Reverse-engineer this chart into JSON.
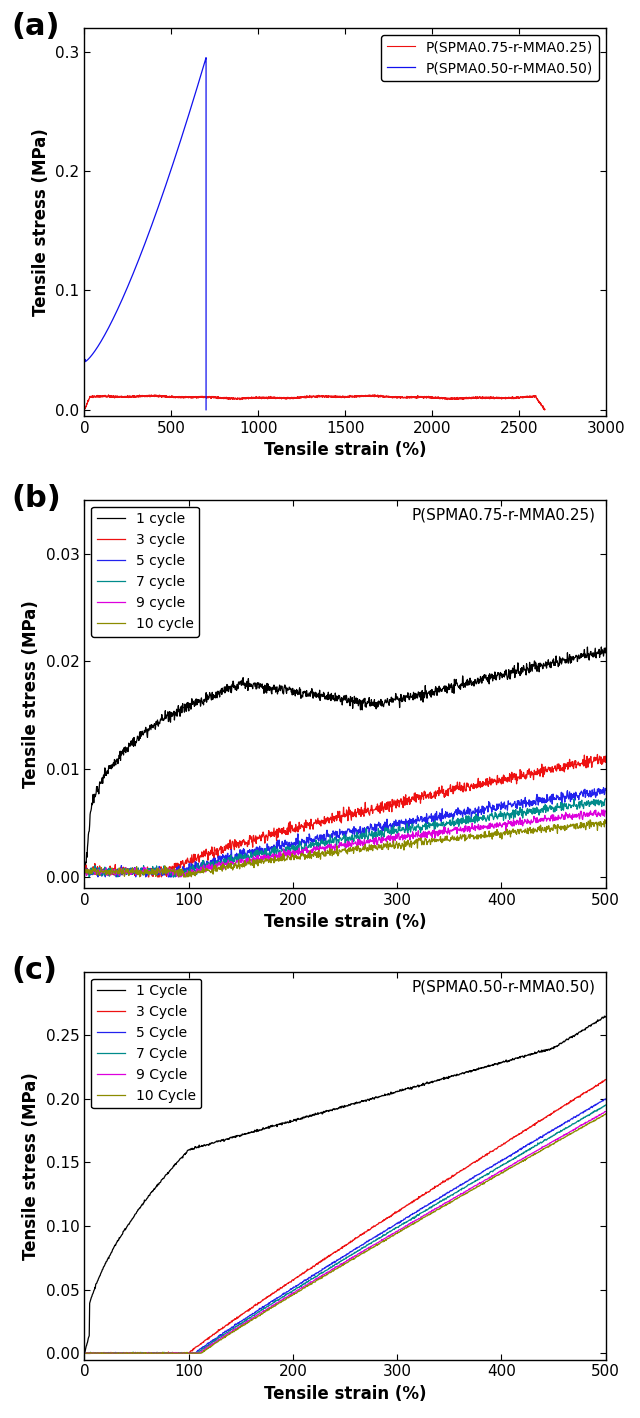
{
  "panel_a": {
    "red_label": "P(SPMA0.75-r-MMA0.25)",
    "blue_label": "P(SPMA0.50-r-MMA0.50)",
    "red_color": "#EE1111",
    "blue_color": "#1111EE",
    "xlabel": "Tensile strain (%)",
    "ylabel": "Tensile stress (MPa)",
    "xlim": [
      0,
      3000
    ],
    "ylim": [
      -0.005,
      0.32
    ],
    "xticks": [
      0,
      500,
      1000,
      1500,
      2000,
      2500,
      3000
    ],
    "yticks": [
      0.0,
      0.1,
      0.2,
      0.3
    ]
  },
  "panel_b": {
    "annotation": "P(SPMA0.75-r-MMA0.25)",
    "cycles": [
      "1 cycle",
      "3 cycle",
      "5 cycle",
      "7 cycle",
      "9 cycle",
      "10 cycle"
    ],
    "colors": [
      "#000000",
      "#EE1111",
      "#2222EE",
      "#008B8B",
      "#DD00DD",
      "#8B8B00"
    ],
    "xlabel": "Tensile strain (%)",
    "ylabel": "Tensile stress (MPa)",
    "xlim": [
      0,
      500
    ],
    "ylim": [
      -0.001,
      0.035
    ],
    "xticks": [
      0,
      100,
      200,
      300,
      400,
      500
    ],
    "yticks": [
      0.0,
      0.01,
      0.02,
      0.03
    ]
  },
  "panel_c": {
    "annotation": "P(SPMA0.50-r-MMA0.50)",
    "cycles": [
      "1 Cycle",
      "3 Cycle",
      "5 Cycle",
      "7 Cycle",
      "9 Cycle",
      "10 Cycle"
    ],
    "colors": [
      "#000000",
      "#EE1111",
      "#2222EE",
      "#008B8B",
      "#DD00DD",
      "#8B8B00"
    ],
    "xlabel": "Tensile strain (%)",
    "ylabel": "Tensile stress (MPa)",
    "xlim": [
      0,
      500
    ],
    "ylim": [
      -0.005,
      0.3
    ],
    "xticks": [
      0,
      100,
      200,
      300,
      400,
      500
    ],
    "yticks": [
      0.0,
      0.05,
      0.1,
      0.15,
      0.2,
      0.25
    ]
  },
  "panel_labels": [
    "(a)",
    "(b)",
    "(c)"
  ],
  "panel_label_fontsize": 22,
  "axis_label_fontsize": 12,
  "tick_label_fontsize": 11,
  "legend_fontsize": 10,
  "annotation_fontsize": 11,
  "linewidth": 0.9
}
